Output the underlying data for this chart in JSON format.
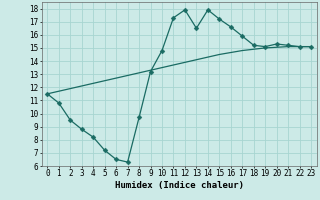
{
  "title": "",
  "xlabel": "Humidex (Indice chaleur)",
  "ylabel": "",
  "bg_color": "#cceae7",
  "grid_color": "#a8d5d1",
  "line_color": "#1a6b63",
  "curve1_x": [
    0,
    1,
    2,
    3,
    4,
    5,
    6,
    7,
    8,
    9,
    10,
    11,
    12,
    13,
    14,
    15,
    16,
    17,
    18,
    19,
    20,
    21,
    22,
    23
  ],
  "curve1_y": [
    11.5,
    10.8,
    9.5,
    8.8,
    8.2,
    7.2,
    6.5,
    6.3,
    9.7,
    13.2,
    14.8,
    17.3,
    17.9,
    16.5,
    17.9,
    17.2,
    16.6,
    15.9,
    15.2,
    15.1,
    15.3,
    15.2,
    15.1,
    15.1
  ],
  "curve2_x": [
    0,
    1,
    2,
    3,
    4,
    5,
    6,
    7,
    8,
    9,
    10,
    11,
    12,
    13,
    14,
    15,
    16,
    17,
    18,
    19,
    20,
    21,
    22,
    23
  ],
  "curve2_y": [
    11.5,
    11.7,
    11.9,
    12.1,
    12.3,
    12.5,
    12.7,
    12.9,
    13.1,
    13.3,
    13.5,
    13.7,
    13.9,
    14.1,
    14.3,
    14.5,
    14.65,
    14.8,
    14.9,
    15.0,
    15.05,
    15.1,
    15.1,
    15.1
  ],
  "xlim": [
    -0.5,
    23.5
  ],
  "ylim": [
    6,
    18.5
  ],
  "yticks": [
    6,
    7,
    8,
    9,
    10,
    11,
    12,
    13,
    14,
    15,
    16,
    17,
    18
  ],
  "xticks": [
    0,
    1,
    2,
    3,
    4,
    5,
    6,
    7,
    8,
    9,
    10,
    11,
    12,
    13,
    14,
    15,
    16,
    17,
    18,
    19,
    20,
    21,
    22,
    23
  ],
  "tick_fontsize": 5.5,
  "label_fontsize": 6.5,
  "marker_size": 2.5,
  "line_width": 0.9
}
